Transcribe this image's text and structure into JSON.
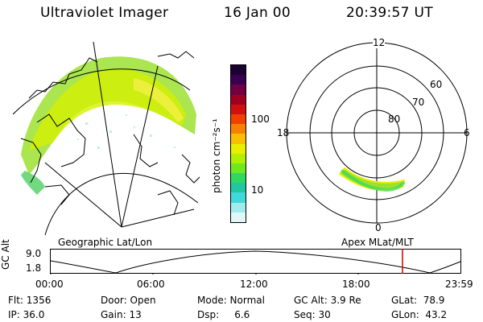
{
  "header": {
    "title": "Ultraviolet Imager",
    "date": "16 Jan 00",
    "time": "20:39:57 UT"
  },
  "colorbar": {
    "unit_label": "photon cm⁻²s⁻¹",
    "ticks": [
      "100",
      "10"
    ],
    "colors": [
      "#1a0033",
      "#3a0050",
      "#700040",
      "#a00020",
      "#d01010",
      "#f04000",
      "#f88000",
      "#f8c000",
      "#e8f000",
      "#b0f000",
      "#70e820",
      "#30d860",
      "#20c8a0",
      "#40d8d8",
      "#a0ecec",
      "#e0f8f8"
    ]
  },
  "geo_panel": {
    "label": "Geographic Lat/Lon"
  },
  "polar_panel": {
    "label": "Apex MLat/MLT",
    "mlt_labels": {
      "top": "12",
      "left": "18",
      "right": "6",
      "bottom": "0"
    },
    "lat_labels": [
      "60",
      "70",
      "80"
    ]
  },
  "timeline": {
    "ylabel": "GC Alt",
    "yticks": [
      "9.0",
      "1.8"
    ],
    "xticks": [
      "00:00",
      "06:00",
      "12:00",
      "18:00",
      "23:59"
    ],
    "marker_color": "#cc0000"
  },
  "info": {
    "flt": "Flt: 1356",
    "door": "Door: Open",
    "mode": "Mode: Normal",
    "gcalt": "GC Alt: 3.9 Re",
    "glat": "GLat:  78.9",
    "ip": "IP: 36.0",
    "gain": "Gain: 13",
    "dsp": "Dsp:     6.6",
    "seq": "Seq: 30",
    "glon": "GLon:  43.2"
  }
}
